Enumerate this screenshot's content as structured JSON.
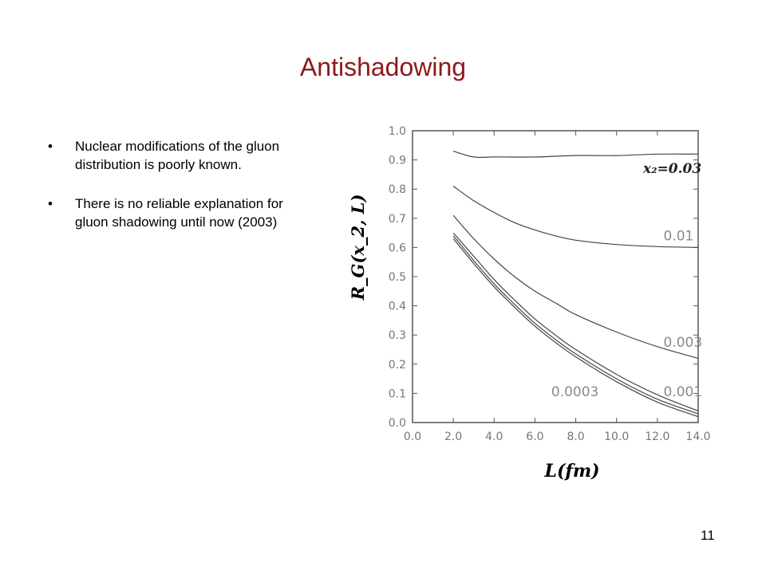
{
  "slide": {
    "title": "Antishadowing",
    "bullets": [
      "Nuclear modifications of the gluon distribution is poorly known.",
      "There is no reliable explanation for gluon shadowing until now (2003)"
    ],
    "bullet_symbol": "•",
    "page_number": "11",
    "title_color": "#8b1a1a"
  },
  "chart_data": {
    "type": "line",
    "xlabel": "L(fm)",
    "ylabel": "R_G(x_2, L)",
    "xlim": [
      0.0,
      14.0
    ],
    "ylim": [
      0.0,
      1.0
    ],
    "x_ticks": [
      "0.0",
      "2.0",
      "4.0",
      "6.0",
      "8.0",
      "10.0",
      "12.0",
      "14.0"
    ],
    "y_ticks": [
      "0.0",
      "0.1",
      "0.2",
      "0.3",
      "0.4",
      "0.5",
      "0.6",
      "0.7",
      "0.8",
      "0.9",
      "1.0"
    ],
    "legend_prefix": "x₂=",
    "series": [
      {
        "name": "0.03",
        "x": [
          2,
          3,
          4,
          6,
          8,
          10,
          12,
          14
        ],
        "values": [
          0.93,
          0.91,
          0.91,
          0.91,
          0.915,
          0.915,
          0.92,
          0.92
        ]
      },
      {
        "name": "0.01",
        "x": [
          2,
          3,
          4,
          5,
          6,
          7,
          8,
          10,
          12,
          14
        ],
        "values": [
          0.81,
          0.76,
          0.72,
          0.685,
          0.66,
          0.64,
          0.625,
          0.61,
          0.603,
          0.6
        ]
      },
      {
        "name": "0.003",
        "x": [
          2,
          3,
          4,
          5,
          6,
          7,
          8,
          10,
          12,
          14
        ],
        "values": [
          0.71,
          0.63,
          0.56,
          0.5,
          0.45,
          0.41,
          0.37,
          0.31,
          0.26,
          0.22
        ]
      },
      {
        "name": "0.001",
        "x": [
          2,
          3,
          4,
          5,
          6,
          7,
          8,
          10,
          12,
          14
        ],
        "values": [
          0.65,
          0.57,
          0.49,
          0.42,
          0.355,
          0.3,
          0.25,
          0.165,
          0.095,
          0.04
        ]
      },
      {
        "name": "",
        "x": [
          2,
          3,
          4,
          5,
          6,
          7,
          8,
          10,
          12,
          14
        ],
        "values": [
          0.64,
          0.555,
          0.475,
          0.405,
          0.34,
          0.285,
          0.235,
          0.15,
          0.08,
          0.03
        ]
      },
      {
        "name": "0.0003",
        "x": [
          2,
          3,
          4,
          5,
          6,
          7,
          8,
          10,
          12,
          14
        ],
        "values": [
          0.63,
          0.545,
          0.465,
          0.395,
          0.33,
          0.275,
          0.225,
          0.14,
          0.07,
          0.02
        ]
      }
    ],
    "curve_labels": [
      {
        "text": "x₂=0.03",
        "x": 11.3,
        "y": 0.855
      },
      {
        "text": "0.01",
        "x": 12.3,
        "y": 0.625
      },
      {
        "text": "0.003",
        "x": 12.3,
        "y": 0.26
      },
      {
        "text": "0.0003",
        "x": 6.8,
        "y": 0.09
      },
      {
        "text": "0.001",
        "x": 12.3,
        "y": 0.09
      }
    ]
  }
}
